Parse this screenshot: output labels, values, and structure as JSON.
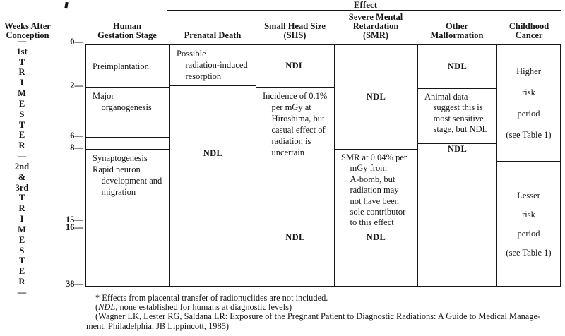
{
  "figure": {
    "effect_label": "Effect"
  },
  "axis": {
    "title": "Weeks After\nConception",
    "spine": [
      "—",
      "1st",
      "T",
      "R",
      "I",
      "M",
      "E",
      "S",
      "T",
      "E",
      "R",
      "—",
      "2nd",
      "&",
      "3rd",
      "T",
      "R",
      "I",
      "M",
      "E",
      "S",
      "T",
      "E",
      "R",
      "—"
    ],
    "ticks": [
      "0—",
      "2—",
      "6—",
      "8—",
      "15—",
      "16—",
      "38—"
    ]
  },
  "headers": {
    "gestation": "Human\nGestation Stage",
    "prenatal_death": "Prenatal Death",
    "small_head_size": "Small Head Size\n(SHS)",
    "severe_mental_retardation": "Severe Mental\nRetardation\n(SMR)",
    "other_malformation": "Other\nMalformation",
    "childhood_cancer": "Childhood\nCancer"
  },
  "table": {
    "gestation": {
      "preimplantation": "Preimplantation",
      "organogenesis": "Major\n    organogenesis",
      "synaptogenesis": "Synaptogenesis\nRapid neuron\n    development and\n    migration"
    },
    "prenatal_death": {
      "resorption": "Possible\n    radiation-induced\n    resorption",
      "ndl": "NDL"
    },
    "shs": {
      "ndl_top": "NDL",
      "incidence": "Incidence of 0.1%\n    per mGy at\n    Hiroshima, but\n    casual effect of\n    radiation is\n    uncertain",
      "ndl_bottom": "NDL"
    },
    "smr": {
      "ndl_top": "NDL",
      "abomb": "SMR at 0.04% per\n    mGy from\n    A-bomb, but\n    radiation may\n    not have been\n    sole contributor\n    to this effect",
      "ndl_bottom": "NDL"
    },
    "other": {
      "ndl_top": "NDL",
      "animal": "Animal data\n    suggest this is\n    most sensitive\n    stage, but NDL",
      "ndl_bottom": "NDL"
    },
    "cancer": {
      "higher": [
        "Higher",
        "risk",
        "period",
        "(see Table 1)"
      ],
      "lesser": [
        "Lesser",
        "risk",
        "period",
        "(see Table 1)"
      ]
    }
  },
  "footnotes": {
    "line1": "* Effects from placental transfer of radionuclides are not included.",
    "line2_open": "(",
    "line2_italic": "NDL",
    "line2_rest": ", none established for humans at diagnostic levels)",
    "line3": "(Wagner LK, Lester RG, Saldana LR: Exposure of the Pregnant Patient to Diagnostic Radiations: A Guide to Medical Manage-",
    "line4": "ment. Philadelphia, JB Lippincott, 1985)"
  },
  "colors": {
    "ink": "#161616",
    "paper": "#ffffff"
  }
}
